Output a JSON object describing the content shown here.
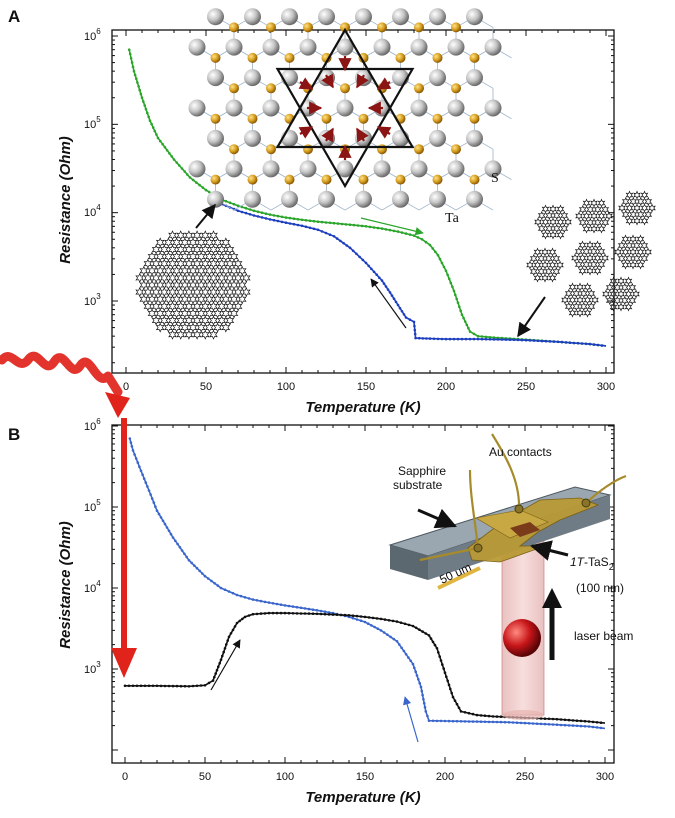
{
  "panels": [
    {
      "letter": "A",
      "xlabel_prefix": "Temperature",
      "xlabel_unit": "K",
      "ylabel_prefix": "Resistance",
      "ylabel_unit": "Ohm",
      "x_ticks": [
        "0",
        "50",
        "100",
        "150",
        "200",
        "250",
        "300"
      ],
      "y_ticks": [
        "10",
        "10",
        "10",
        "10"
      ],
      "y_tick_exps": [
        "3",
        "4",
        "5",
        "6"
      ],
      "atom_labels": {
        "s": "S",
        "ta": "Ta"
      }
    },
    {
      "letter": "B",
      "xlabel_prefix": "Temperature",
      "xlabel_unit": "K",
      "ylabel_prefix": "Resistance",
      "ylabel_unit": "Ohm",
      "x_ticks": [
        "0",
        "50",
        "100",
        "150",
        "200",
        "250",
        "300"
      ],
      "y_ticks": [
        "10",
        "10",
        "10",
        "10"
      ],
      "y_tick_exps": [
        "3",
        "4",
        "5",
        "6"
      ],
      "device_labels": {
        "au_contacts": "Au contacts",
        "sapphire_1": "Sapphire",
        "sapphire_2": "substrate",
        "sample_prefix": "1T",
        "sample_main": "-TaS",
        "sample_sub": "2",
        "thickness": "(100 nm)",
        "laser": "laser beam",
        "scale": "50 um"
      }
    }
  ],
  "colors": {
    "green": "#2aa52a",
    "blue": "#1d3fbf",
    "lightblue": "#3a66cc",
    "black": "#111111",
    "red": "#e0231b"
  },
  "chart_data": [
    {
      "type": "line",
      "x_range": [
        -5,
        305
      ],
      "y_log": true,
      "y_range": [
        230,
        1300000
      ],
      "series": [
        {
          "color": "green",
          "x": [
            2,
            5,
            10,
            15,
            20,
            30,
            40,
            50,
            60,
            70,
            80,
            90,
            100,
            110,
            120,
            130,
            140,
            150,
            160,
            170,
            180,
            185,
            190,
            195,
            200,
            205,
            210,
            215,
            220,
            230,
            240,
            250,
            260,
            270,
            280,
            290,
            300
          ],
          "y": [
            700000,
            400000,
            200000,
            110000,
            70000,
            40000,
            25000,
            18000,
            14000,
            12000,
            10500,
            9500,
            8800,
            8300,
            7900,
            7600,
            7300,
            7000,
            6600,
            6100,
            5500,
            5000,
            4300,
            3300,
            2200,
            1300,
            700,
            450,
            400,
            385,
            375,
            365,
            355,
            345,
            335,
            325,
            310
          ]
        },
        {
          "color": "blue",
          "x": [
            60,
            70,
            80,
            90,
            100,
            110,
            120,
            130,
            140,
            150,
            160,
            165,
            170,
            175,
            180,
            181,
            190,
            200,
            210,
            220,
            230,
            240,
            250,
            260,
            270,
            280,
            290,
            300
          ],
          "y": [
            12500,
            10500,
            9300,
            8400,
            7700,
            7100,
            6400,
            5400,
            4000,
            2700,
            1700,
            1250,
            900,
            650,
            580,
            380,
            375,
            370,
            370,
            370,
            368,
            365,
            360,
            352,
            345,
            335,
            325,
            310
          ]
        }
      ]
    },
    {
      "type": "line",
      "x_range": [
        -5,
        305
      ],
      "y_log": true,
      "y_range": [
        150,
        1300000
      ],
      "series": [
        {
          "color": "lightblue",
          "x": [
            3,
            5,
            10,
            15,
            20,
            30,
            40,
            50,
            60,
            70,
            80,
            90,
            100,
            110,
            120,
            130,
            140,
            150,
            160,
            170,
            180,
            185,
            188,
            190,
            200,
            210,
            220,
            230,
            240,
            250,
            260,
            270,
            280,
            290,
            300
          ],
          "y": [
            700000,
            500000,
            280000,
            160000,
            90000,
            42000,
            22000,
            14000,
            10000,
            8200,
            7200,
            6600,
            6100,
            5700,
            5300,
            4900,
            4400,
            3800,
            3000,
            2200,
            1150,
            600,
            300,
            230,
            228,
            226,
            224,
            222,
            220,
            215,
            210,
            205,
            200,
            195,
            185
          ]
        },
        {
          "color": "black",
          "x": [
            0,
            10,
            20,
            30,
            40,
            50,
            55,
            60,
            65,
            70,
            75,
            80,
            90,
            100,
            110,
            120,
            130,
            140,
            150,
            160,
            170,
            180,
            190,
            195,
            200,
            205,
            210,
            220,
            230,
            240,
            250,
            260,
            270,
            280,
            290,
            300
          ],
          "y": [
            620,
            620,
            620,
            615,
            612,
            630,
            720,
            1300,
            2500,
            3700,
            4400,
            4750,
            4900,
            4900,
            4850,
            4800,
            4700,
            4600,
            4400,
            4150,
            3850,
            3400,
            2600,
            1800,
            900,
            450,
            300,
            270,
            260,
            255,
            250,
            245,
            240,
            232,
            225,
            215
          ]
        }
      ]
    }
  ]
}
